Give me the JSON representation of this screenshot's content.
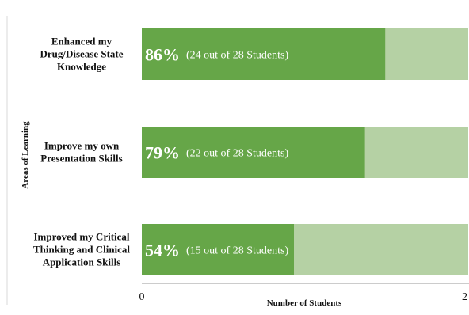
{
  "chart_data": {
    "type": "bar",
    "orientation": "horizontal",
    "stacked": true,
    "total": 28,
    "xlim": [
      0,
      28
    ],
    "xlabel": "Number of Students",
    "ylabel": "Areas of Learning",
    "x_ticks": [
      "0",
      "2"
    ],
    "grid": false,
    "categories": [
      "Enhanced my Drug/Disease State Knowledge",
      "Improve my own Presentation Skills",
      "Improved my Critical Thinking and Clinical Application Skills"
    ],
    "category_lines": [
      [
        "Enhanced my",
        "Drug/Disease State",
        "Knowledge"
      ],
      [
        "Improve my own",
        "Presentation Skills"
      ],
      [
        "Improved my Critical",
        "Thinking and Clinical",
        "Application Skills"
      ]
    ],
    "values": [
      24,
      22,
      15
    ],
    "percent_labels": [
      "86%",
      "79%",
      "54%"
    ],
    "count_labels": [
      "(24 out of 28 Students)",
      "(22 out of 28 Students)",
      "(15 out of 28 Students)"
    ],
    "colors": {
      "bar": "#66a648",
      "remainder": "#b5d1a4",
      "axis": "#9a9a9a",
      "divider": "#d8d8d8"
    }
  }
}
